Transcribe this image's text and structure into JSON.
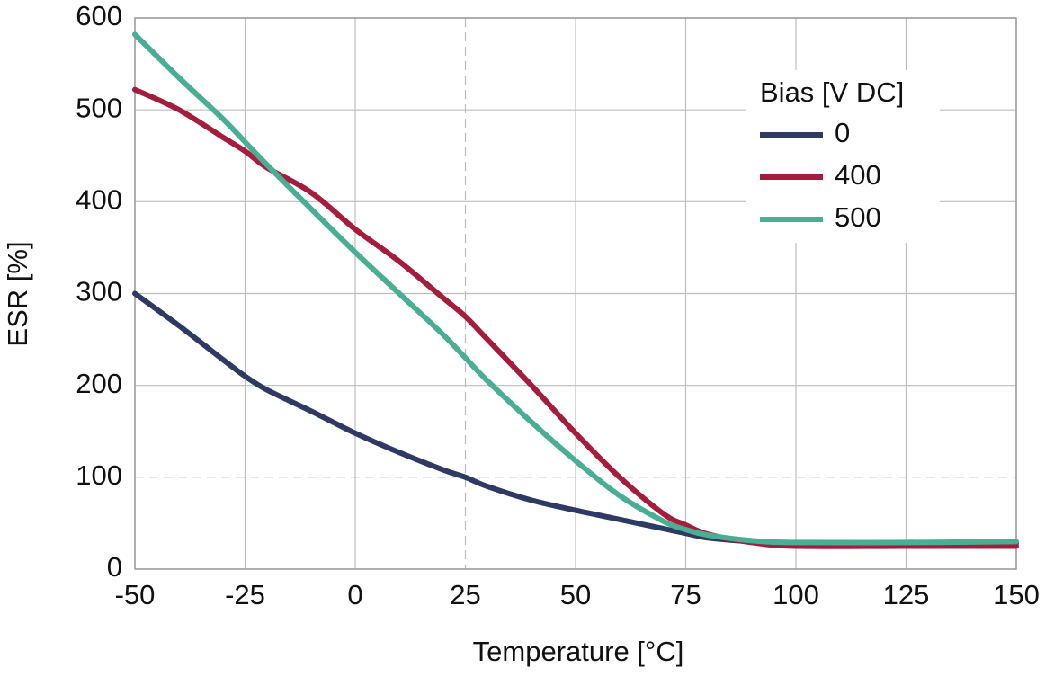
{
  "chart_data": {
    "type": "line",
    "x_label": "Temperature [°C]",
    "y_label": "ESR [%]",
    "legend_title": "Bias [V DC]",
    "legend_position": "upper right",
    "grid": true,
    "dashed_grid": {
      "x": [
        25
      ],
      "y": [
        100
      ]
    },
    "x": [
      -50,
      -40,
      -30,
      -25,
      -20,
      -10,
      0,
      10,
      20,
      25,
      30,
      40,
      50,
      60,
      70,
      75,
      80,
      90,
      100,
      125,
      150
    ],
    "series": [
      {
        "name": "0",
        "color": "#2e3a63",
        "values": [
          300,
          265,
          228,
          210,
          195,
          172,
          148,
          127,
          108,
          100,
          90,
          75,
          64,
          54,
          44,
          39,
          34,
          30,
          28,
          28,
          28
        ]
      },
      {
        "name": "400",
        "color": "#a51c3c",
        "values": [
          522,
          500,
          470,
          455,
          437,
          410,
          370,
          335,
          295,
          275,
          250,
          200,
          148,
          100,
          60,
          48,
          38,
          29,
          25,
          25,
          25
        ]
      },
      {
        "name": "500",
        "color": "#4aae94",
        "values": [
          582,
          535,
          490,
          465,
          440,
          392,
          345,
          300,
          255,
          230,
          205,
          160,
          118,
          80,
          52,
          43,
          37,
          31,
          29,
          29,
          30
        ]
      }
    ],
    "xlim": [
      -50,
      150
    ],
    "xticks": [
      -50,
      -25,
      0,
      25,
      50,
      75,
      100,
      125,
      150
    ],
    "ylim": [
      0,
      600
    ],
    "yticks": [
      0,
      100,
      200,
      300,
      400,
      500,
      600
    ]
  }
}
